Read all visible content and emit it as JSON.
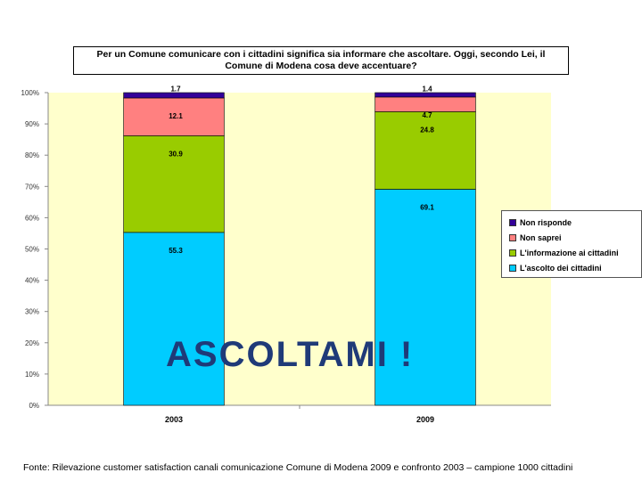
{
  "chart_data": {
    "type": "bar",
    "stacked": true,
    "title_line1": "Per un Comune comunicare con i cittadini significa sia informare che ascoltare. Oggi, secondo Lei, il",
    "title_line2": "Comune di Modena cosa deve accentuare?",
    "categories": [
      "2003",
      "2009"
    ],
    "yticks": [
      "0%",
      "10%",
      "20%",
      "30%",
      "40%",
      "50%",
      "60%",
      "70%",
      "80%",
      "90%",
      "100%"
    ],
    "ylim": [
      0,
      100
    ],
    "series": [
      {
        "name": "L'ascolto dei cittadini",
        "color": "#00ccff",
        "values": [
          55.3,
          69.1
        ],
        "labels": [
          "55.3",
          "69.1"
        ]
      },
      {
        "name": "L'informazione ai cittadini",
        "color": "#99cc00",
        "values": [
          30.9,
          24.8
        ],
        "labels": [
          "30.9",
          "24.8"
        ]
      },
      {
        "name": "Non saprei",
        "color": "#ff8080",
        "values": [
          12.1,
          4.7
        ],
        "labels": [
          "12.1",
          "4.7"
        ]
      },
      {
        "name": "Non risponde",
        "color": "#330099",
        "values": [
          1.7,
          1.4
        ],
        "labels": [
          "1.7",
          "1.4"
        ]
      }
    ],
    "legend_order": [
      3,
      2,
      1,
      0
    ],
    "legend_position": "right",
    "plot_bg": "#ffffcc"
  },
  "overlay_text": "ASCOLTAMI !",
  "source": "Fonte: Rilevazione customer satisfaction canali comunicazione Comune di Modena 2009 e confronto 2003 – campione 1000 cittadini"
}
